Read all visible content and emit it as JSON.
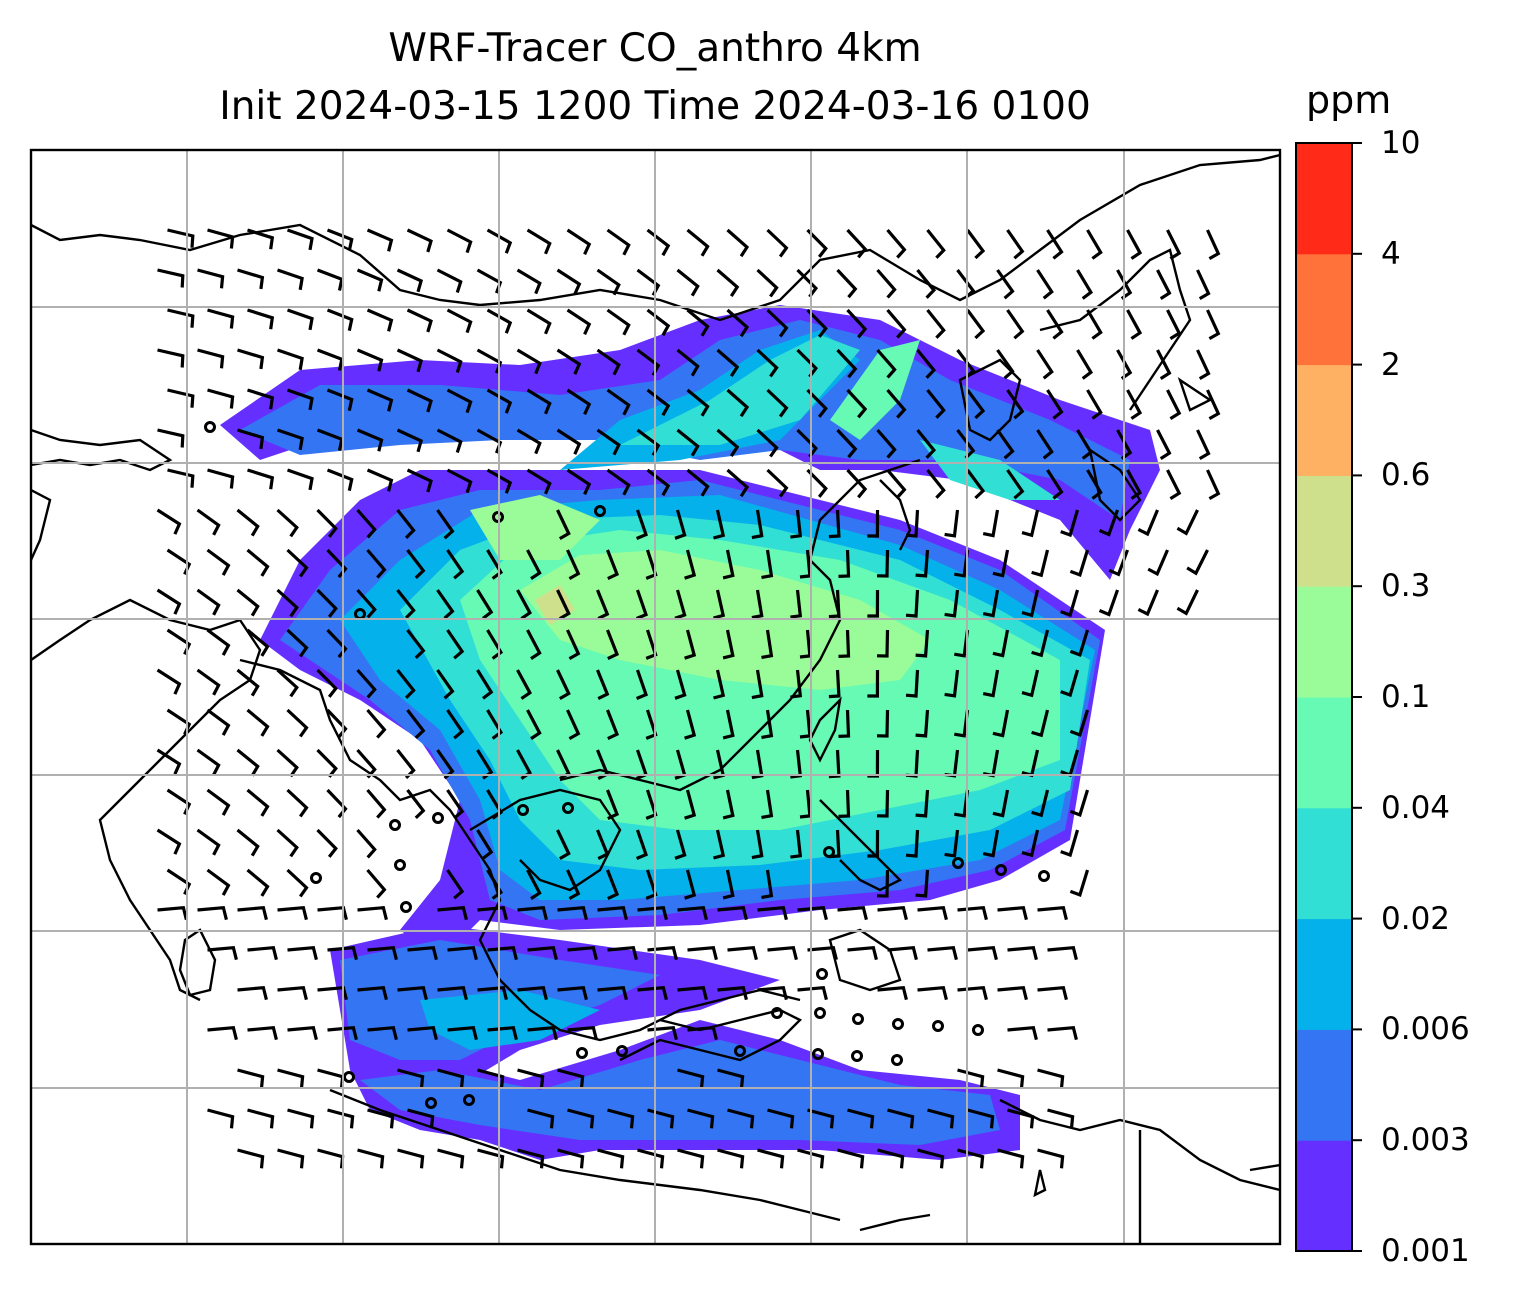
{
  "title": {
    "line1": "WRF-Tracer CO_anthro 4km",
    "line2": "Init 2024-03-15 1200 Time 2024-03-16 0100"
  },
  "colorbar": {
    "unit": "ppm",
    "levels": [
      "0.001",
      "0.003",
      "0.006",
      "0.02",
      "0.04",
      "0.1",
      "0.3",
      "0.6",
      "2",
      "4",
      "10"
    ],
    "colors": [
      "#6530ff",
      "#3475f3",
      "#05b1ea",
      "#32dfd4",
      "#66fab5",
      "#99fc98",
      "#cfe08c",
      "#feb063",
      "#ff733a",
      "#ff2a18"
    ]
  },
  "legend_colors": {
    "coastline": "#000000",
    "gridline": "#b0b0b0"
  }
}
